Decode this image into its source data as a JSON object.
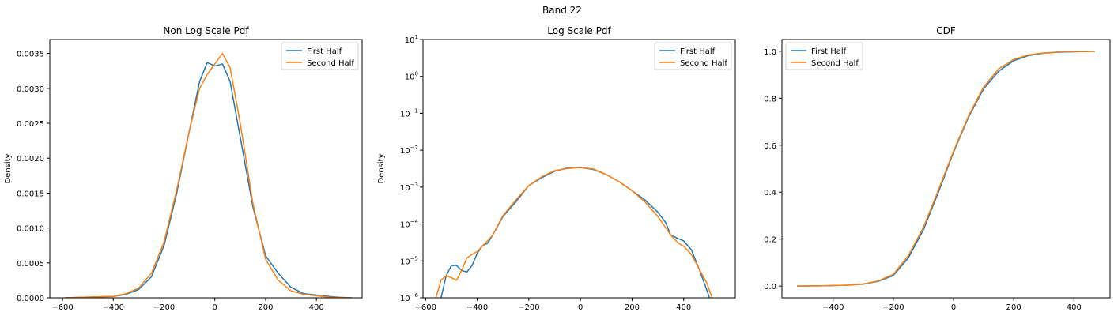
{
  "figure": {
    "suptitle": "Band 22"
  },
  "chart_data": [
    {
      "type": "line",
      "title": "Non Log Scale Pdf",
      "xlabel": "",
      "ylabel": "Density",
      "xlim": [
        -650,
        580
      ],
      "ylim": [
        0,
        0.0037
      ],
      "yscale": "linear",
      "xticks": [
        -600,
        -400,
        -200,
        0,
        200,
        400
      ],
      "xtick_labels": [
        "−600",
        "−400",
        "−200",
        "0",
        "200",
        "400"
      ],
      "yticks": [
        0,
        0.0005,
        0.001,
        0.0015,
        0.002,
        0.0025,
        0.003,
        0.0035
      ],
      "ytick_labels": [
        "0.0000",
        "0.0005",
        "0.0010",
        "0.0015",
        "0.0020",
        "0.0025",
        "0.0030",
        "0.0035"
      ],
      "legend": "top-right",
      "grid": false,
      "series": [
        {
          "name": "First Half",
          "color": "#1f77b4",
          "x": [
            -590,
            -500,
            -400,
            -350,
            -300,
            -250,
            -200,
            -150,
            -100,
            -60,
            -30,
            0,
            30,
            60,
            100,
            150,
            200,
            250,
            300,
            350,
            400,
            450,
            500,
            540
          ],
          "y": [
            0.0,
            1e-05,
            2e-05,
            5e-05,
            0.00012,
            0.0003,
            0.00075,
            0.0015,
            0.0024,
            0.0031,
            0.00337,
            0.00332,
            0.00335,
            0.0031,
            0.0023,
            0.0013,
            0.0006,
            0.00035,
            0.00015,
            6e-05,
            4e-05,
            2e-05,
            5e-06,
            0.0
          ]
        },
        {
          "name": "Second Half",
          "color": "#ff7f0e",
          "x": [
            -590,
            -500,
            -400,
            -350,
            -300,
            -250,
            -200,
            -150,
            -100,
            -60,
            -30,
            0,
            30,
            60,
            100,
            150,
            200,
            250,
            300,
            350,
            400,
            450,
            500,
            540
          ],
          "y": [
            0.0,
            1e-05,
            2e-05,
            6e-05,
            0.00014,
            0.00035,
            0.0008,
            0.00155,
            0.0024,
            0.003,
            0.0032,
            0.00335,
            0.0035,
            0.0033,
            0.0025,
            0.00135,
            0.00055,
            0.00025,
            0.0001,
            5e-05,
            3e-05,
            1e-05,
            3e-06,
            0.0
          ]
        }
      ]
    },
    {
      "type": "line",
      "title": "Log Scale Pdf",
      "xlabel": "",
      "ylabel": "Density",
      "xlim": [
        -610,
        600
      ],
      "ylim": [
        1e-06,
        10
      ],
      "yscale": "log",
      "xticks": [
        -600,
        -400,
        -200,
        0,
        200,
        400
      ],
      "xtick_labels": [
        "−600",
        "−400",
        "−200",
        "0",
        "200",
        "400"
      ],
      "yticks": [
        1e-06,
        1e-05,
        0.0001,
        0.001,
        0.01,
        0.1,
        1,
        10
      ],
      "ytick_base": "10",
      "ytick_exponents": [
        "−6",
        "−5",
        "−4",
        "−3",
        "−2",
        "−1",
        "0",
        "1"
      ],
      "legend": "top-right",
      "grid": false,
      "series": [
        {
          "name": "First Half",
          "color": "#1f77b4",
          "x": [
            -540,
            -520,
            -500,
            -480,
            -460,
            -440,
            -420,
            -400,
            -380,
            -360,
            -340,
            -300,
            -250,
            -200,
            -150,
            -100,
            -50,
            0,
            50,
            100,
            150,
            200,
            250,
            300,
            330,
            350,
            380,
            400,
            430,
            460,
            480,
            500
          ],
          "y": [
            1e-06,
            4e-06,
            7.5e-06,
            7.5e-06,
            5.5e-06,
            5e-06,
            7.5e-06,
            1.6e-05,
            2.6e-05,
            3e-05,
            5e-05,
            0.00016,
            0.0004,
            0.0011,
            0.0018,
            0.0027,
            0.0033,
            0.0034,
            0.003,
            0.0022,
            0.0014,
            0.0008,
            0.00045,
            0.00021,
            0.00011,
            5e-05,
            4e-05,
            3.5e-05,
            2e-05,
            6e-06,
            2.5e-06,
            1e-06
          ]
        },
        {
          "name": "Second Half",
          "color": "#ff7f0e",
          "x": [
            -560,
            -540,
            -520,
            -500,
            -480,
            -460,
            -440,
            -420,
            -400,
            -380,
            -360,
            -340,
            -300,
            -250,
            -200,
            -150,
            -100,
            -50,
            0,
            50,
            100,
            150,
            200,
            250,
            300,
            330,
            350,
            380,
            400,
            430,
            460,
            490,
            510
          ],
          "y": [
            1e-06,
            3e-06,
            4e-06,
            3.5e-06,
            3e-06,
            5.5e-06,
            1.2e-05,
            1.5e-05,
            1.8e-05,
            2.5e-05,
            3.5e-05,
            5e-05,
            0.00017,
            0.00045,
            0.0011,
            0.0019,
            0.0028,
            0.0032,
            0.0034,
            0.0031,
            0.0022,
            0.0014,
            0.0008,
            0.0004,
            0.00016,
            8e-05,
            5e-05,
            3e-05,
            2.5e-05,
            1.5e-05,
            6e-06,
            2.5e-06,
            1e-06
          ]
        }
      ]
    },
    {
      "type": "line",
      "title": "CDF",
      "xlabel": "",
      "ylabel": "",
      "xlim": [
        -570,
        520
      ],
      "ylim": [
        -0.05,
        1.05
      ],
      "yscale": "linear",
      "xticks": [
        -400,
        -200,
        0,
        200,
        400
      ],
      "xtick_labels": [
        "−400",
        "−200",
        "0",
        "200",
        "400"
      ],
      "yticks": [
        0.0,
        0.2,
        0.4,
        0.6,
        0.8,
        1.0
      ],
      "ytick_labels": [
        "0.0",
        "0.2",
        "0.4",
        "0.6",
        "0.8",
        "1.0"
      ],
      "legend": "top-left",
      "grid": false,
      "series": [
        {
          "name": "First Half",
          "color": "#1f77b4",
          "x": [
            -520,
            -450,
            -400,
            -350,
            -300,
            -250,
            -200,
            -150,
            -100,
            -50,
            0,
            50,
            100,
            150,
            200,
            250,
            300,
            350,
            400,
            470
          ],
          "y": [
            0.0,
            0.001,
            0.002,
            0.004,
            0.008,
            0.02,
            0.045,
            0.12,
            0.24,
            0.4,
            0.57,
            0.72,
            0.84,
            0.915,
            0.96,
            0.982,
            0.992,
            0.996,
            0.998,
            1.0
          ]
        },
        {
          "name": "Second Half",
          "color": "#ff7f0e",
          "x": [
            -520,
            -450,
            -400,
            -350,
            -300,
            -250,
            -200,
            -150,
            -100,
            -50,
            0,
            50,
            100,
            150,
            200,
            250,
            300,
            350,
            400,
            470
          ],
          "y": [
            0.0,
            0.001,
            0.002,
            0.004,
            0.009,
            0.022,
            0.05,
            0.13,
            0.25,
            0.41,
            0.575,
            0.725,
            0.848,
            0.925,
            0.965,
            0.985,
            0.993,
            0.997,
            0.999,
            1.0
          ]
        }
      ]
    }
  ]
}
